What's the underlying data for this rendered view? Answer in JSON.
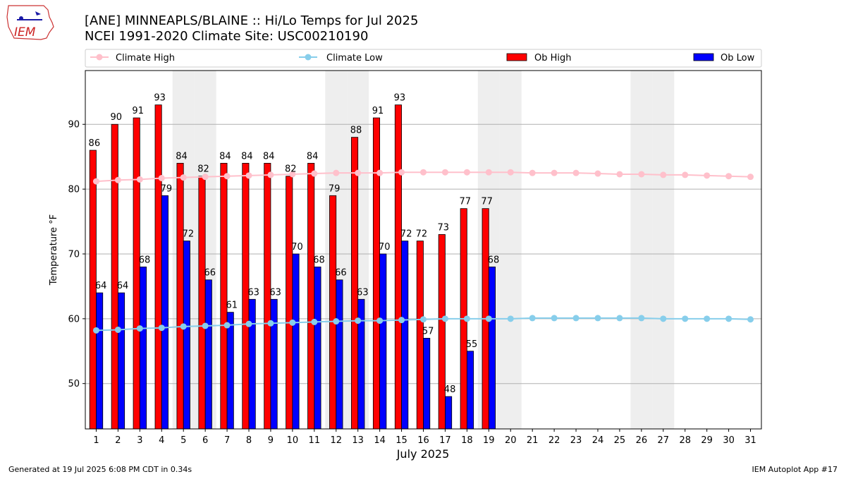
{
  "header": {
    "title_line1": "[ANE] MINNEAPLS/BLAINE :: Hi/Lo Temps for Jul 2025",
    "title_line2": "NCEI 1991-2020 Climate Site: USC00210190",
    "logo_text": "IEM"
  },
  "footer": {
    "generated": "Generated at 19 Jul 2025 6:08 PM CDT in 0.34s",
    "app": "IEM Autoplot App #17"
  },
  "colors": {
    "ob_high": "#ff0000",
    "ob_low": "#0000ff",
    "climate_high": "#ffc0cb",
    "climate_low": "#87ceeb",
    "weekend_shade": "#eeeeee",
    "grid": "#b0b0b0"
  },
  "chart_data": {
    "type": "bar",
    "xlabel": "July 2025",
    "ylabel": "Temperature °F",
    "ylim": [
      43,
      98.3
    ],
    "yticks": [
      50,
      60,
      70,
      80,
      90
    ],
    "grid": "horizontal",
    "legend_position": "top",
    "categories": [
      1,
      2,
      3,
      4,
      5,
      6,
      7,
      8,
      9,
      10,
      11,
      12,
      13,
      14,
      15,
      16,
      17,
      18,
      19,
      20,
      21,
      22,
      23,
      24,
      25,
      26,
      27,
      28,
      29,
      30,
      31
    ],
    "weekend_days": [
      5,
      6,
      12,
      13,
      19,
      20,
      26,
      27
    ],
    "series": [
      {
        "name": "Ob High",
        "kind": "bar",
        "values": [
          86,
          90,
          91,
          93,
          84,
          82,
          84,
          84,
          84,
          82,
          84,
          79,
          88,
          91,
          93,
          72,
          73,
          77,
          77,
          null,
          null,
          null,
          null,
          null,
          null,
          null,
          null,
          null,
          null,
          null,
          null
        ]
      },
      {
        "name": "Ob Low",
        "kind": "bar",
        "values": [
          64,
          64,
          68,
          79,
          72,
          66,
          61,
          63,
          63,
          70,
          68,
          66,
          63,
          70,
          72,
          57,
          48,
          55,
          68,
          null,
          null,
          null,
          null,
          null,
          null,
          null,
          null,
          null,
          null,
          null,
          null
        ]
      },
      {
        "name": "Climate High",
        "kind": "line",
        "values": [
          81.2,
          81.4,
          81.5,
          81.7,
          81.8,
          81.9,
          82.0,
          82.1,
          82.2,
          82.3,
          82.4,
          82.5,
          82.5,
          82.5,
          82.6,
          82.6,
          82.6,
          82.6,
          82.6,
          82.6,
          82.5,
          82.5,
          82.5,
          82.4,
          82.3,
          82.3,
          82.2,
          82.2,
          82.1,
          82.0,
          81.9
        ]
      },
      {
        "name": "Climate Low",
        "kind": "line",
        "values": [
          58.2,
          58.3,
          58.5,
          58.6,
          58.8,
          58.9,
          59.0,
          59.2,
          59.3,
          59.4,
          59.5,
          59.6,
          59.7,
          59.7,
          59.8,
          59.9,
          60.0,
          60.0,
          60.0,
          60.0,
          60.1,
          60.1,
          60.1,
          60.1,
          60.1,
          60.1,
          60.0,
          60.0,
          60.0,
          60.0,
          59.9
        ]
      }
    ]
  }
}
